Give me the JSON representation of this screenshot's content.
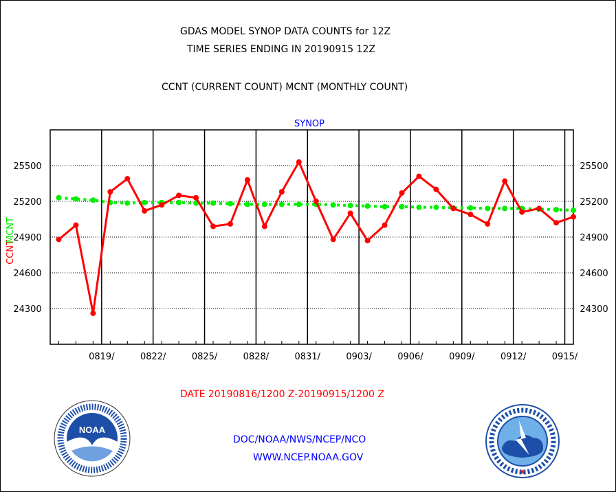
{
  "titles": {
    "line1": "GDAS MODEL SYNOP DATA COUNTS for 12Z",
    "line2": "TIME SERIES ENDING IN 20190915 12Z",
    "line3": "CCNT (CURRENT COUNT) MCNT (MONTHLY COUNT)"
  },
  "footer": {
    "date_range": "DATE 20190816/1200 Z-20190915/1200 Z",
    "org": "DOC/NOAA/NWS/NCEP/NCO",
    "url": "WWW.NCEP.NOAA.GOV"
  },
  "logos": {
    "left": {
      "center": "NOAA",
      "ring": "NATIONAL OCEANIC AND ATMOSPHERIC ADMINISTRATION · U.S. DEPARTMENT OF COMMERCE"
    },
    "right": {
      "ring": "NATIONAL WEATHER SERVICE"
    }
  },
  "colors": {
    "ccnt": "#ff0000",
    "mcnt": "#00ee00",
    "label_blue": "#0000ff"
  },
  "chart_data": {
    "type": "line",
    "title": "SYNOP",
    "ylabel_left": [
      "CCNT",
      "MCNT"
    ],
    "ylim": [
      24000,
      25800
    ],
    "yticks": [
      24300,
      24600,
      24900,
      25200,
      25500
    ],
    "xlim": [
      "2019-08-16",
      "2019-09-15"
    ],
    "xticks": [
      "0819/",
      "0822/",
      "0825/",
      "0828/",
      "0831/",
      "0903/",
      "0906/",
      "0909/",
      "0912/",
      "0915/"
    ],
    "xtick_dates": [
      "2019-08-19",
      "2019-08-22",
      "2019-08-25",
      "2019-08-28",
      "2019-08-31",
      "2019-09-03",
      "2019-09-06",
      "2019-09-09",
      "2019-09-12",
      "2019-09-15"
    ],
    "grid": true,
    "x": [
      "2019-08-16",
      "2019-08-17",
      "2019-08-18",
      "2019-08-19",
      "2019-08-20",
      "2019-08-21",
      "2019-08-22",
      "2019-08-23",
      "2019-08-24",
      "2019-08-25",
      "2019-08-26",
      "2019-08-27",
      "2019-08-28",
      "2019-08-29",
      "2019-08-30",
      "2019-08-31",
      "2019-09-01",
      "2019-09-02",
      "2019-09-03",
      "2019-09-04",
      "2019-09-05",
      "2019-09-06",
      "2019-09-07",
      "2019-09-08",
      "2019-09-09",
      "2019-09-10",
      "2019-09-11",
      "2019-09-12",
      "2019-09-13",
      "2019-09-14",
      "2019-09-15"
    ],
    "series": [
      {
        "name": "CCNT",
        "color": "#ff0000",
        "values": [
          24880,
          25000,
          24260,
          25280,
          25390,
          25120,
          25170,
          25250,
          25230,
          24990,
          25010,
          25380,
          24990,
          25280,
          25530,
          25200,
          24880,
          25100,
          24870,
          25000,
          25270,
          25410,
          25300,
          25140,
          25090,
          25010,
          25370,
          25110,
          25140,
          25020,
          25070
        ]
      },
      {
        "name": "MCNT",
        "color": "#00ee00",
        "values": [
          25230,
          25220,
          25210,
          25190,
          25185,
          25190,
          25190,
          25190,
          25185,
          25185,
          25180,
          25175,
          25175,
          25175,
          25175,
          25175,
          25170,
          25165,
          25160,
          25155,
          25155,
          25150,
          25150,
          25145,
          25145,
          25140,
          25140,
          25140,
          25135,
          25130,
          25125
        ]
      }
    ]
  }
}
